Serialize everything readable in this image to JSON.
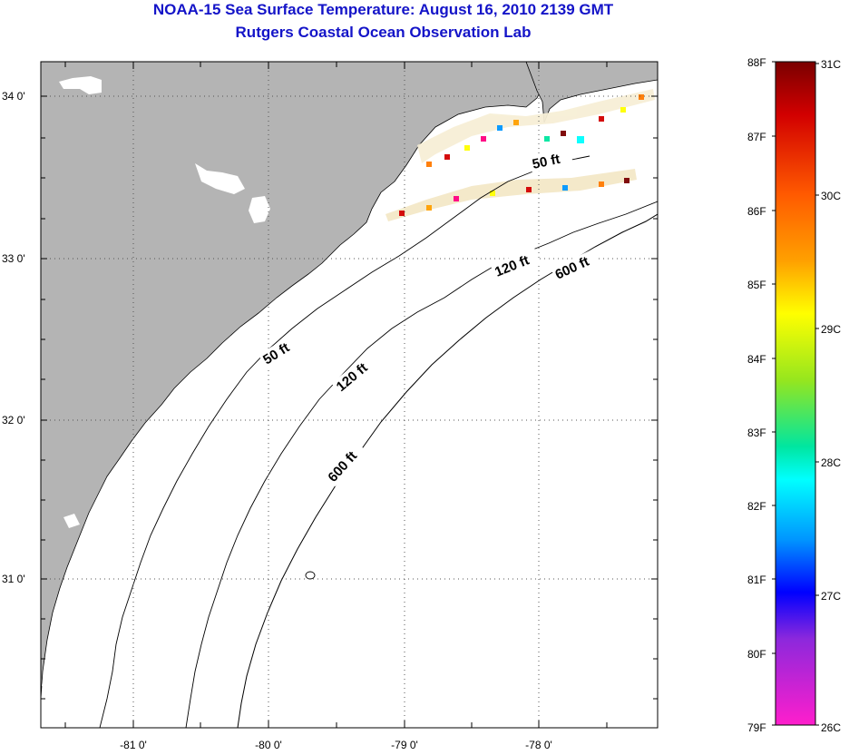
{
  "header": {
    "title": "NOAA-15 Sea Surface Temperature:  August 16, 2010 2139 GMT",
    "subtitle": "Rutgers Coastal Ocean Observation Lab"
  },
  "map": {
    "lon_labels": [
      "-81 0'",
      "-80 0'",
      "-79 0'",
      "-78 0'"
    ],
    "lat_labels": [
      "34 0'",
      "33 0'",
      "32 0'",
      "31 0'"
    ],
    "contours": [
      {
        "label": "50 ft"
      },
      {
        "label": "120 ft"
      },
      {
        "label": "600 ft"
      }
    ],
    "contour_labels": [
      "50 ft",
      "120 ft",
      "600 ft",
      "50 ft",
      "120 ft",
      "600 ft"
    ],
    "colors": {
      "land": "#b4b4b4",
      "ocean": "#ffffff",
      "title": "#1414c8"
    }
  },
  "colorbar": {
    "f_labels": [
      "88F",
      "87F",
      "86F",
      "85F",
      "84F",
      "83F",
      "82F",
      "81F",
      "80F",
      "79F"
    ],
    "c_labels": [
      "31C",
      "30C",
      "29C",
      "28C",
      "27C",
      "26C"
    ],
    "range_f": [
      79,
      88
    ],
    "range_c": [
      26,
      31
    ]
  }
}
